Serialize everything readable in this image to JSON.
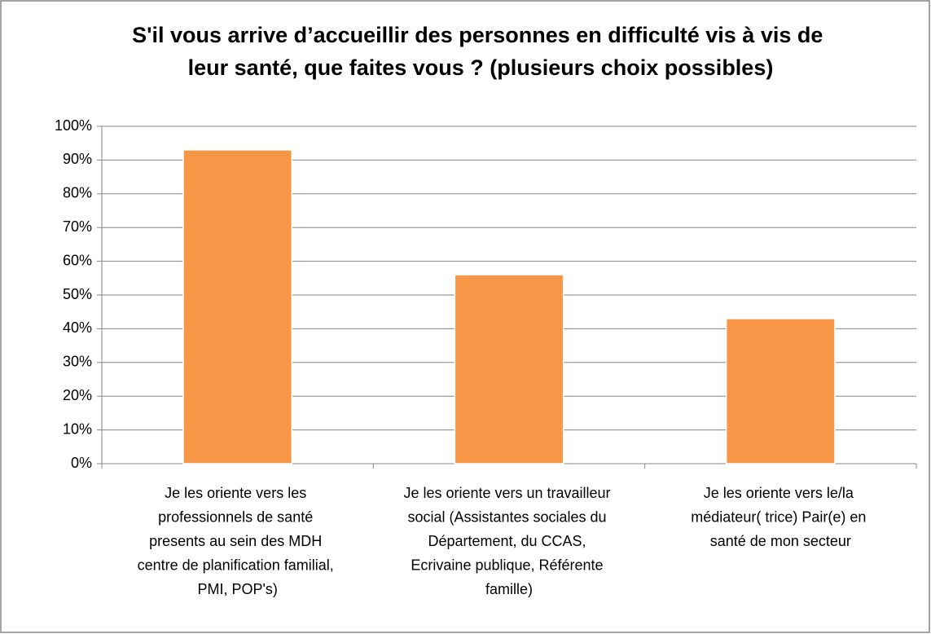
{
  "chart_data": {
    "type": "bar",
    "title": "S'il vous arrive d’accueillir des personnes en difficulté vis à vis de leur santé, que faites vous ? (plusieurs choix possibles)",
    "categories": [
      "Je les oriente vers les professionnels de santé presents au sein des MDH centre de planification familial, PMI, POP's)",
      "Je les oriente vers un travailleur social (Assistantes sociales du Département, du CCAS, Ecrivaine publique, Référente famille)",
      "Je les oriente vers le/la médiateur( trice) Pair(e) en santé de mon secteur"
    ],
    "values": [
      93,
      56,
      43
    ],
    "color": "#f79646",
    "ylim": [
      0,
      100
    ],
    "yticks": [
      {
        "value": 0,
        "label": "0%"
      },
      {
        "value": 10,
        "label": "10%"
      },
      {
        "value": 20,
        "label": "20%"
      },
      {
        "value": 30,
        "label": "30%"
      },
      {
        "value": 40,
        "label": "40%"
      },
      {
        "value": 50,
        "label": "50%"
      },
      {
        "value": 60,
        "label": "60%"
      },
      {
        "value": 70,
        "label": "70%"
      },
      {
        "value": 80,
        "label": "80%"
      },
      {
        "value": 90,
        "label": "90%"
      },
      {
        "value": 100,
        "label": "100%"
      }
    ],
    "grid": true
  }
}
